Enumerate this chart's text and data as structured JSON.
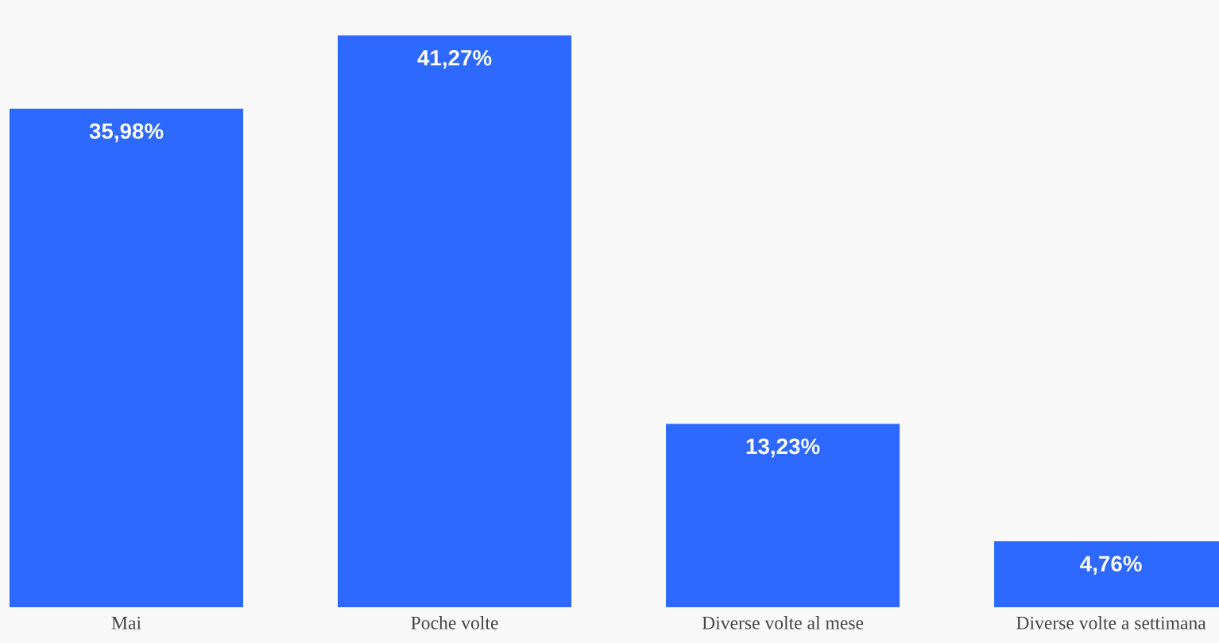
{
  "chart_data": {
    "type": "bar",
    "categories": [
      "Mai",
      "Poche volte",
      "Diverse volte al mese",
      "Diverse volte a settimana"
    ],
    "values": [
      35.98,
      41.27,
      13.23,
      4.76
    ],
    "value_labels": [
      "35,98%",
      "41,27%",
      "13,23%",
      "4,76%"
    ],
    "color": "#2d68ff",
    "grid": false,
    "legend": false
  }
}
